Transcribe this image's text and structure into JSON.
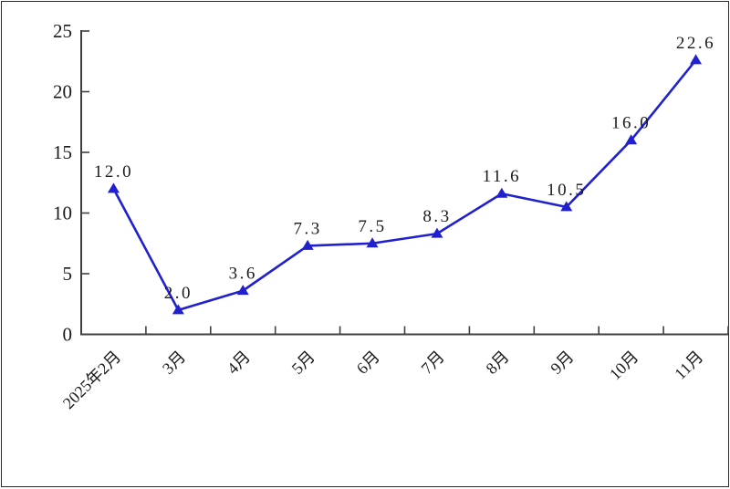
{
  "chart_data": {
    "type": "line",
    "title": "",
    "xlabel": "",
    "ylabel": "",
    "categories": [
      "2025年2月",
      "3月",
      "4月",
      "5月",
      "6月",
      "7月",
      "8月",
      "9月",
      "10月",
      "11月"
    ],
    "values": [
      12.0,
      2.0,
      3.6,
      7.3,
      7.5,
      8.3,
      11.6,
      10.5,
      16.0,
      22.6
    ],
    "point_labels": [
      "12.0",
      "2.0",
      "3.6",
      "7.3",
      "7.5",
      "8.3",
      "11.6",
      "10.5",
      "16.0",
      "22.6"
    ],
    "ylim": [
      0,
      25
    ],
    "yticks": [
      0,
      5,
      10,
      15,
      20,
      25
    ],
    "grid": false,
    "legend": "none",
    "marker_shape": "triangle-up",
    "x_label_rotation_deg": -45,
    "colors": {
      "line": "#2020cf",
      "marker": "#2020cf",
      "axis": "#404040",
      "text": "#1a1a1a",
      "background": "#ffffff",
      "frame_border": "#2b2b2b"
    }
  }
}
